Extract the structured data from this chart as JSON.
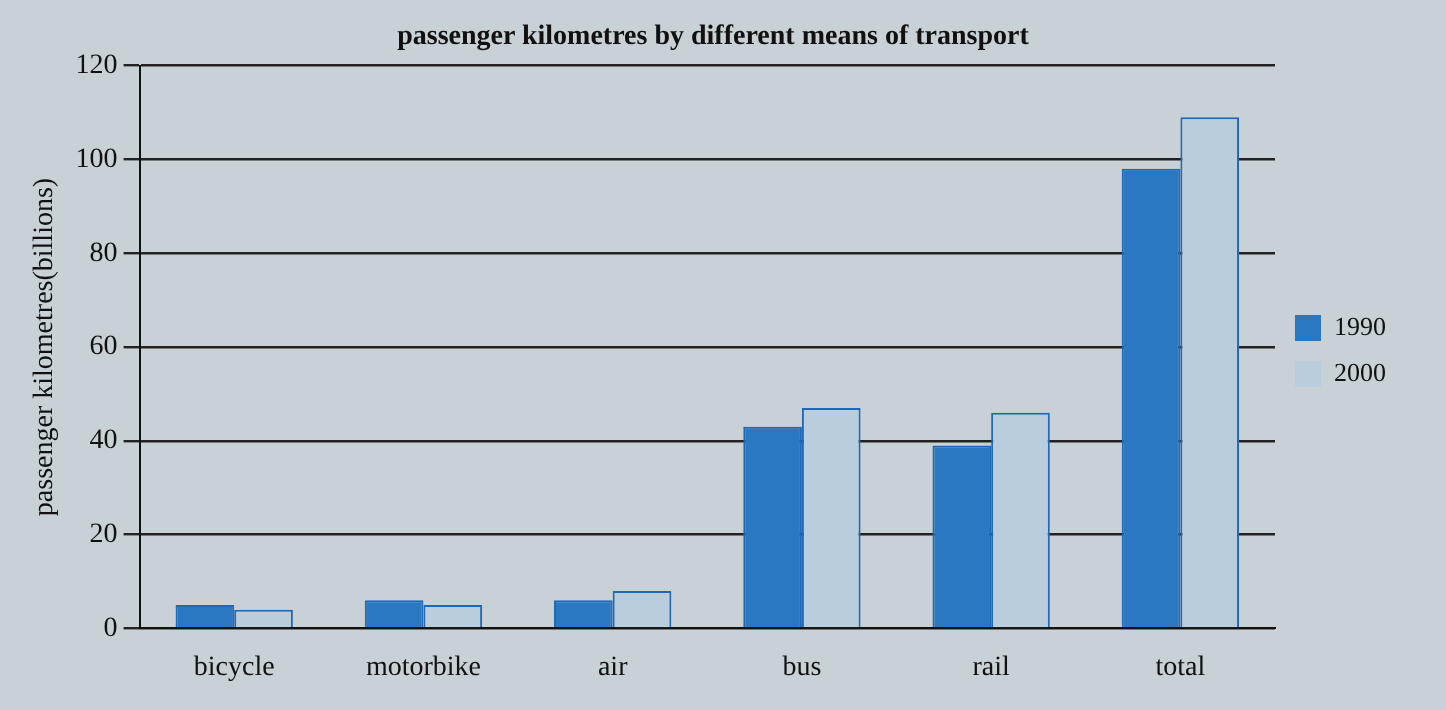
{
  "chart_data": {
    "type": "bar",
    "title": "passenger kilometres by different means of transport",
    "ylabel": "passenger kilometres(billions)",
    "categories": [
      "bicycle",
      "motorbike",
      "air",
      "bus",
      "rail",
      "total"
    ],
    "series": [
      {
        "name": "1990",
        "color": "#2a78c2",
        "values": [
          5,
          6,
          6,
          43,
          39,
          98
        ]
      },
      {
        "name": "2000",
        "color": "#b9cddd",
        "values": [
          4,
          5,
          8,
          47,
          46,
          109
        ]
      }
    ],
    "ylim": [
      0,
      120
    ],
    "yticks": [
      0,
      20,
      40,
      60,
      80,
      100,
      120
    ],
    "grid": "y",
    "legend": "right"
  }
}
